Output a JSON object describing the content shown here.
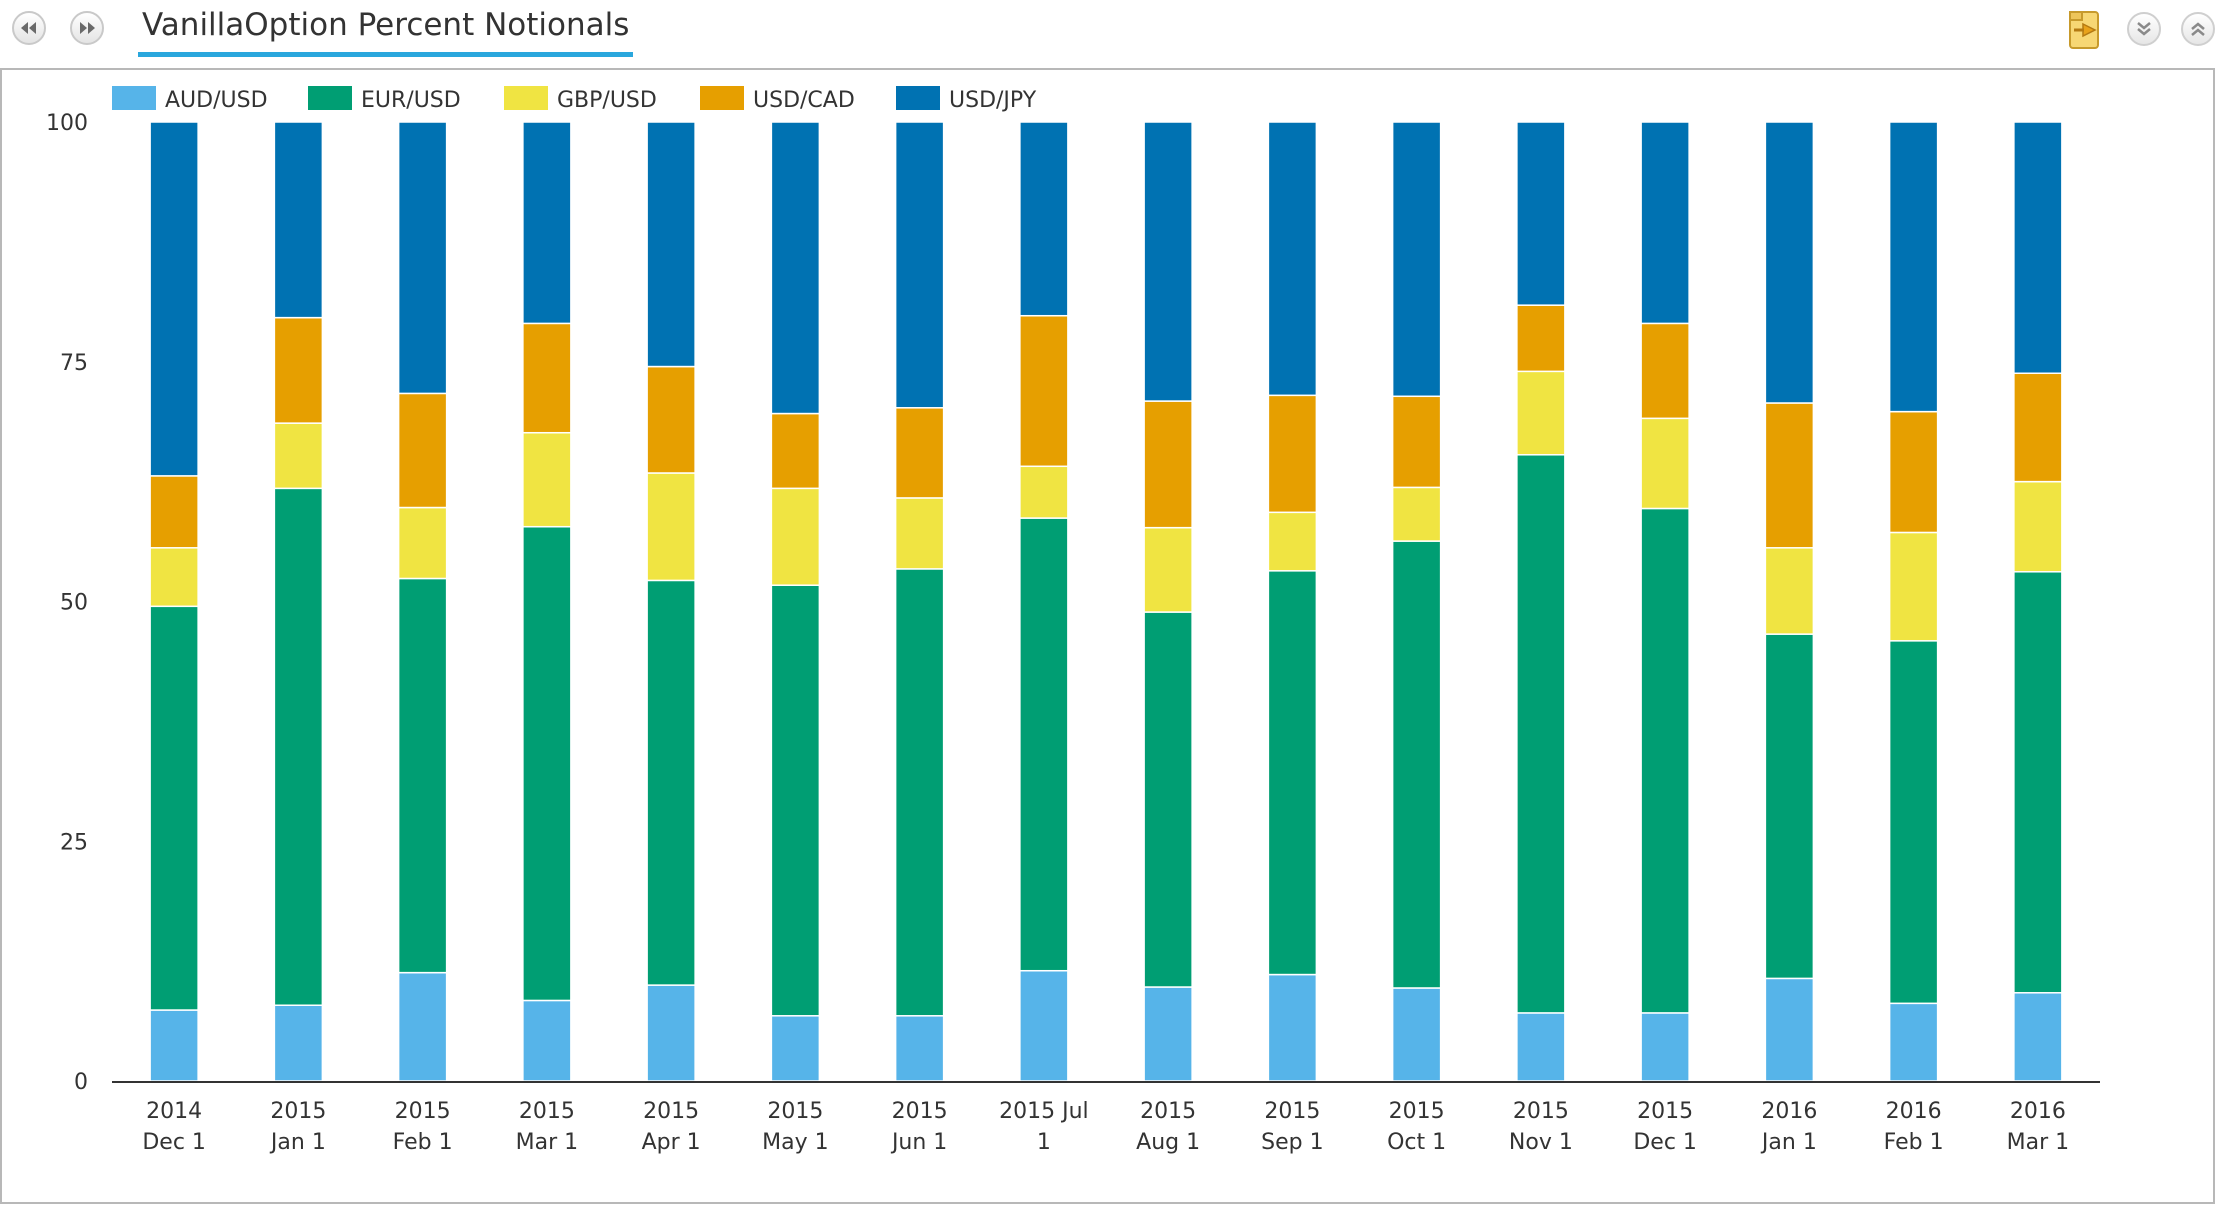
{
  "window": {
    "title": "VanillaOption Percent Notionals"
  },
  "toolbar": {
    "prev_icon": "rewind-icon",
    "next_icon": "fast-forward-icon",
    "export_icon": "export-folder-icon",
    "collapse_icon": "chevron-down-icon",
    "expand_icon": "chevron-up-icon"
  },
  "chart_data": {
    "type": "bar",
    "stacked": true,
    "percent": true,
    "title": "",
    "xlabel": "",
    "ylabel": "",
    "ylim": [
      0,
      100
    ],
    "yticks": [
      "0",
      "25",
      "50",
      "75",
      "100"
    ],
    "grid": false,
    "legend_position": "top-left",
    "categories": [
      [
        "2014",
        "Dec 1"
      ],
      [
        "2015",
        "Jan 1"
      ],
      [
        "2015",
        "Feb 1"
      ],
      [
        "2015",
        "Mar 1"
      ],
      [
        "2015",
        "Apr 1"
      ],
      [
        "2015",
        "May 1"
      ],
      [
        "2015",
        "Jun 1"
      ],
      [
        "2015 Jul",
        "1"
      ],
      [
        "2015",
        "Aug 1"
      ],
      [
        "2015",
        "Sep 1"
      ],
      [
        "2015",
        "Oct 1"
      ],
      [
        "2015",
        "Nov 1"
      ],
      [
        "2015",
        "Dec 1"
      ],
      [
        "2016",
        "Jan 1"
      ],
      [
        "2016",
        "Feb 1"
      ],
      [
        "2016",
        "Mar 1"
      ]
    ],
    "series": [
      {
        "name": "AUD/USD",
        "color": "#56b4e9",
        "values": [
          7.4,
          7.9,
          11.3,
          8.4,
          10.0,
          6.8,
          6.8,
          11.5,
          9.8,
          11.1,
          9.7,
          7.1,
          7.1,
          10.7,
          8.1,
          9.2
        ]
      },
      {
        "name": "EUR/USD",
        "color": "#009e73",
        "values": [
          42.1,
          53.9,
          41.1,
          49.4,
          42.2,
          44.9,
          46.6,
          47.2,
          39.1,
          42.1,
          46.6,
          58.2,
          52.6,
          35.9,
          37.8,
          43.9
        ]
      },
      {
        "name": "GBP/USD",
        "color": "#f0e442",
        "values": [
          6.1,
          6.8,
          7.4,
          9.8,
          11.2,
          10.1,
          7.4,
          5.4,
          8.8,
          6.1,
          5.6,
          8.7,
          9.4,
          9.0,
          11.3,
          9.4
        ]
      },
      {
        "name": "USD/CAD",
        "color": "#e69f00",
        "values": [
          7.5,
          11.0,
          11.9,
          11.4,
          11.1,
          7.8,
          9.4,
          15.7,
          13.2,
          12.2,
          9.5,
          6.9,
          9.9,
          15.1,
          12.6,
          11.3
        ]
      },
      {
        "name": "USD/JPY",
        "color": "#0072b2",
        "values": [
          36.9,
          20.4,
          28.3,
          21.0,
          25.5,
          30.4,
          29.8,
          20.2,
          29.1,
          28.5,
          28.6,
          19.1,
          21.0,
          29.3,
          30.2,
          26.2
        ]
      }
    ]
  }
}
